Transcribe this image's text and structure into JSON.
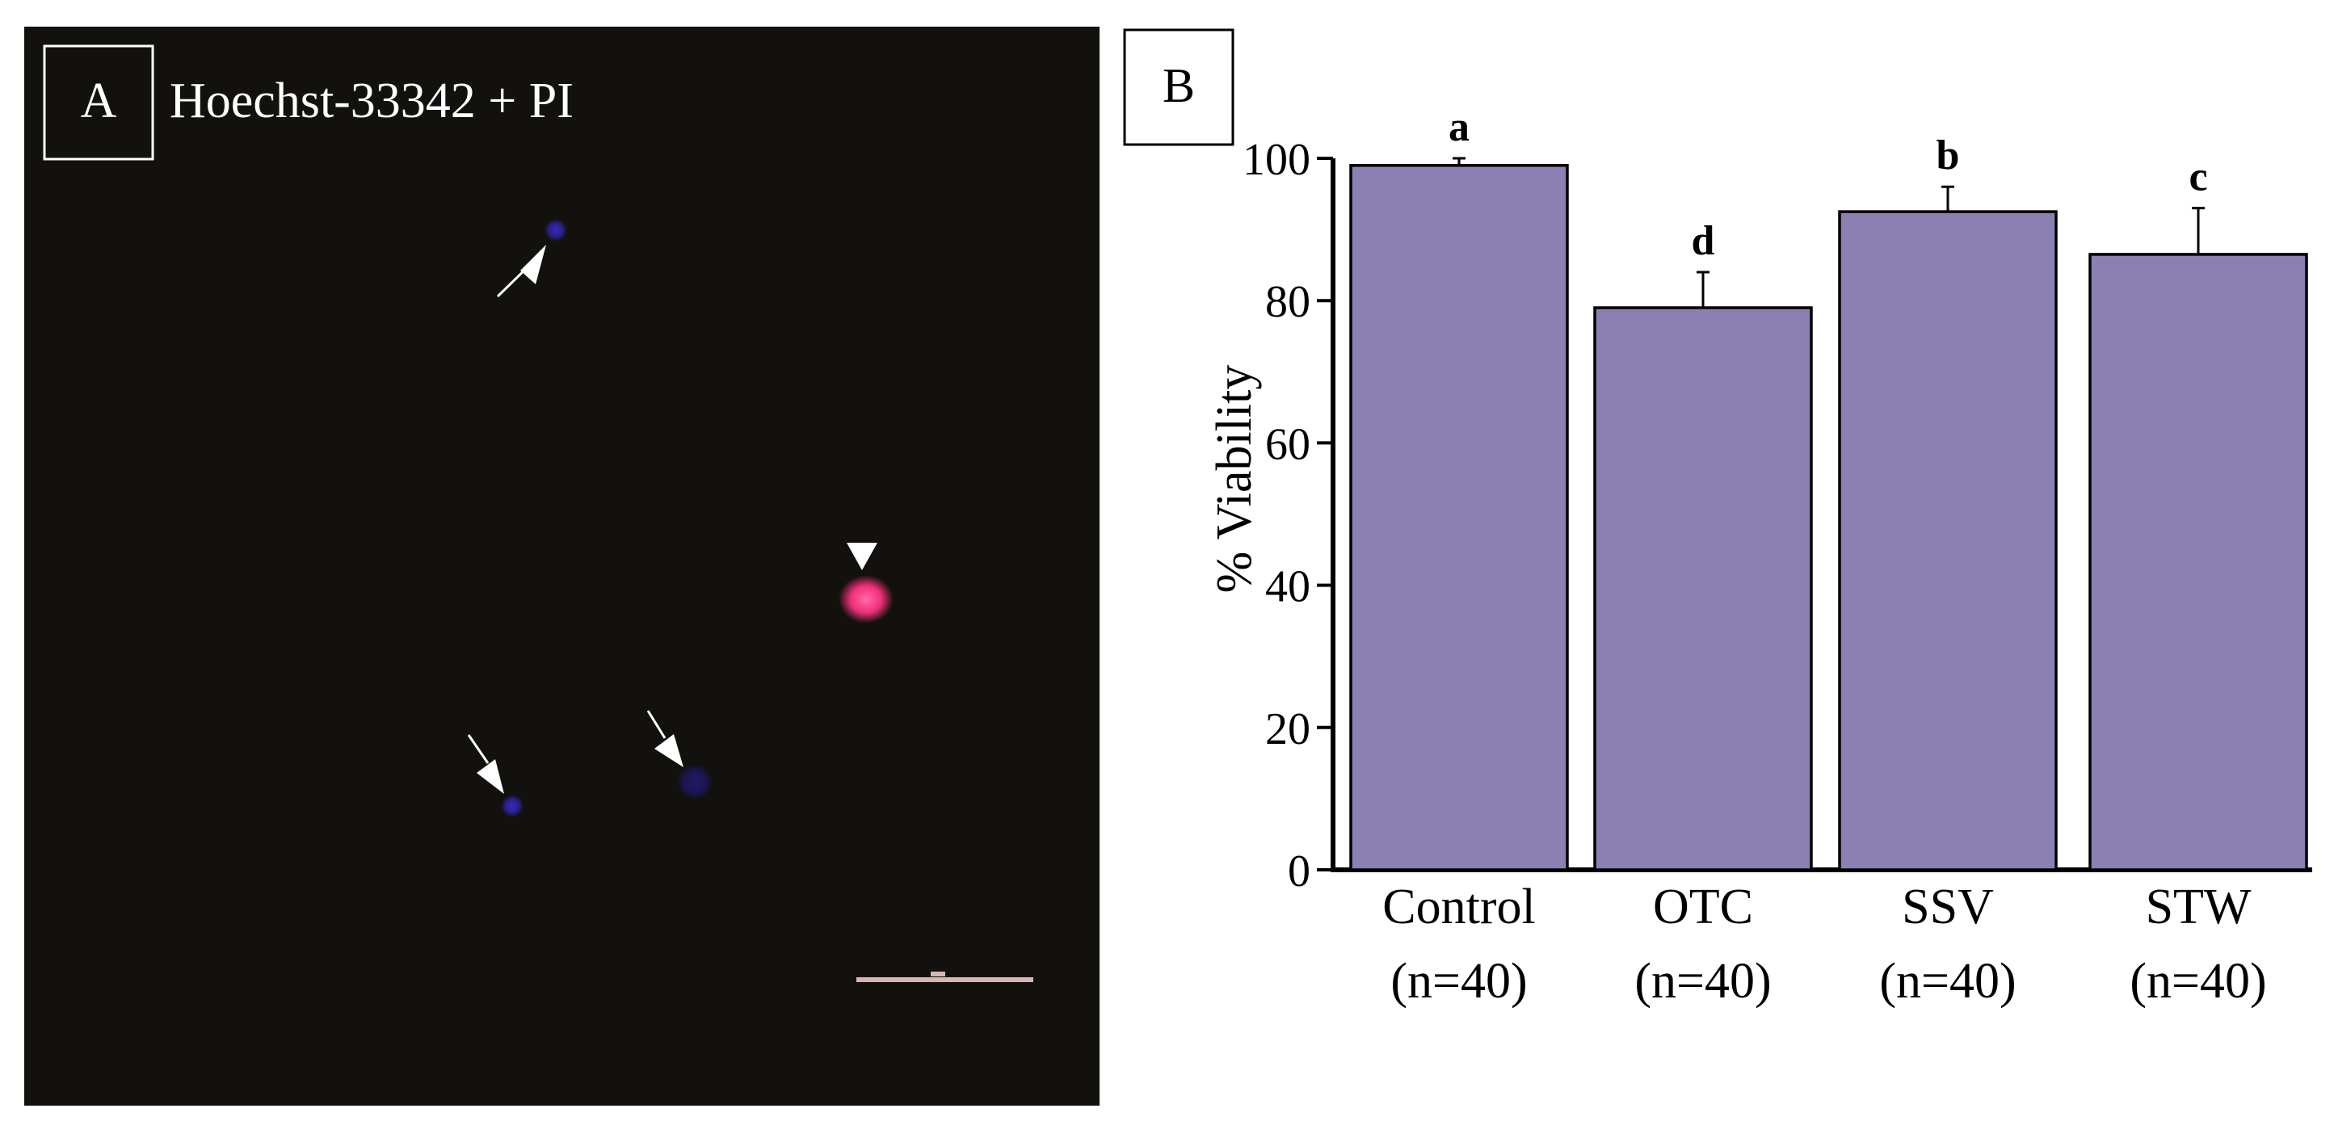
{
  "figure": {
    "panel_a": {
      "letter": "A",
      "title": "Hoechst-33342 + PI",
      "colors": {
        "background": "#12110d",
        "blue_nucleus": "#2a1f8c",
        "pink_nucleus": "#f0307a",
        "arrow": "#ffffff",
        "scale_bar": "#d8b4b4"
      }
    },
    "panel_b": {
      "letter": "B",
      "chart_data": {
        "type": "bar",
        "title": "",
        "xlabel": "",
        "ylabel": "% Viability",
        "categories": [
          "Control",
          "OTC",
          "SSV",
          "STW"
        ],
        "category_sublabels": [
          "(n=40)",
          "(n=40)",
          "(n=40)",
          "(n=40)"
        ],
        "values": [
          99,
          79,
          92.5,
          86.5
        ],
        "error_bars": [
          1,
          5,
          3.5,
          6.5
        ],
        "significance_letters": [
          "a",
          "d",
          "b",
          "c"
        ],
        "ylim": [
          0,
          100
        ],
        "yticks": [
          0,
          20,
          40,
          60,
          80,
          100
        ],
        "grid": false,
        "legend": "none",
        "colors": {
          "bar_fill": "#8c80b3",
          "bar_stroke": "#000000",
          "axis": "#000000"
        }
      }
    }
  }
}
